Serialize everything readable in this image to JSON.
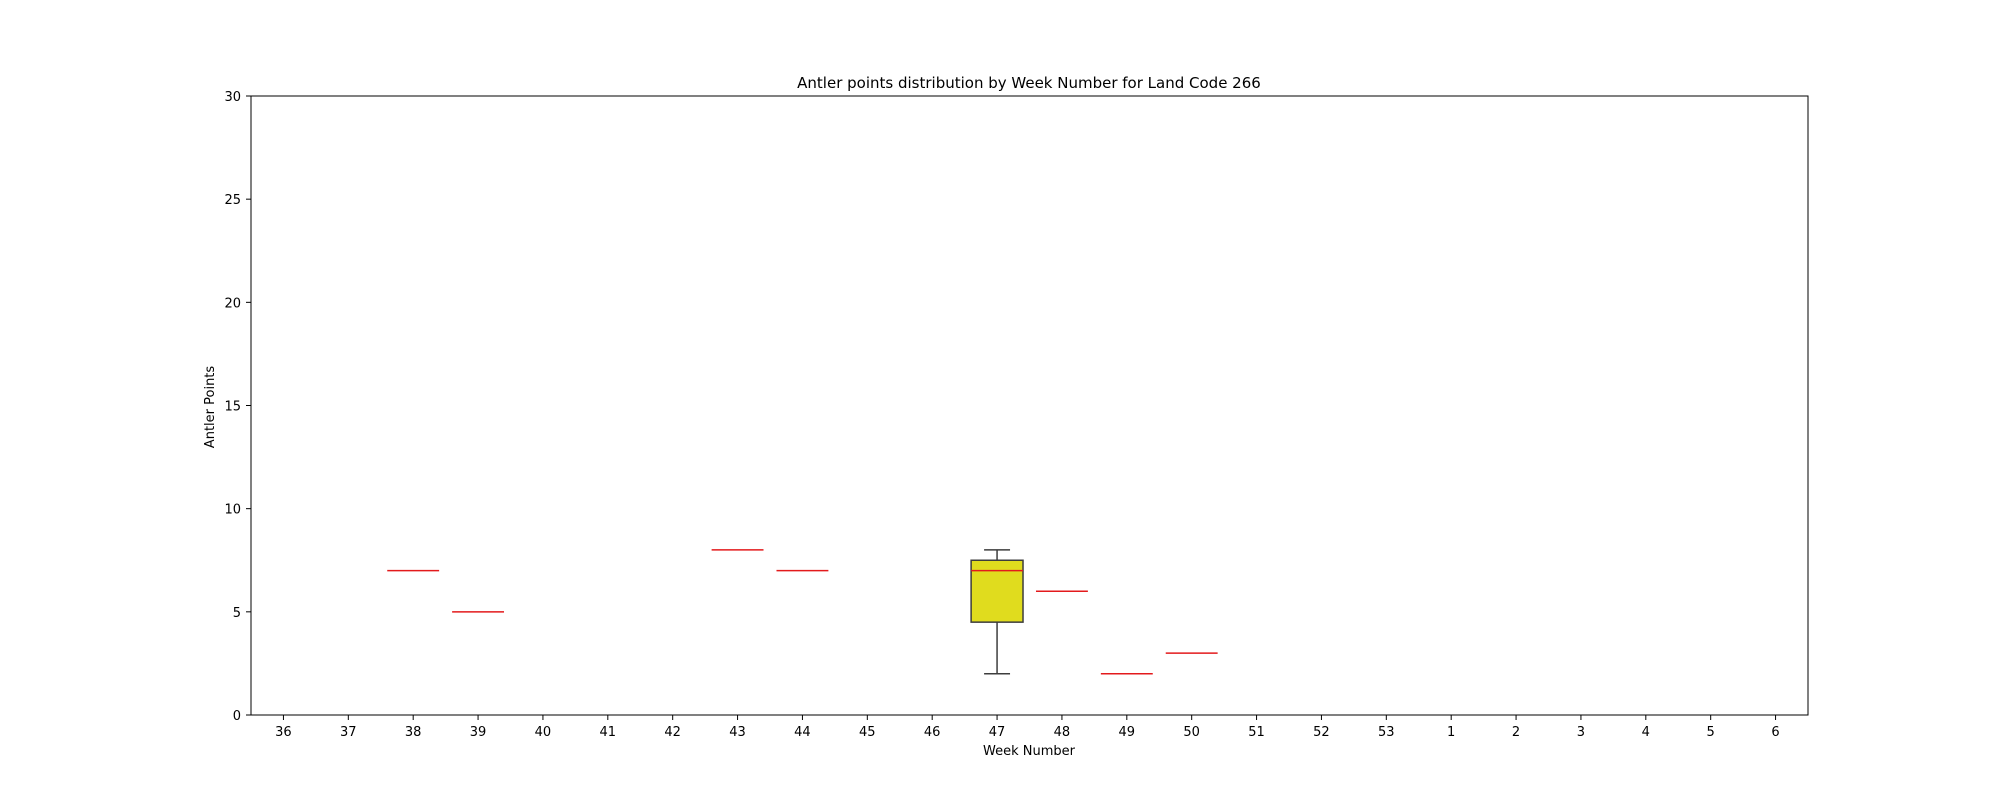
{
  "chart_data": {
    "type": "box",
    "title": "Antler points distribution by Week Number for Land Code 266",
    "xlabel": "Week Number",
    "ylabel": "Antler Points",
    "ylim": [
      0,
      30
    ],
    "yticks": [
      0,
      5,
      10,
      15,
      20,
      25,
      30
    ],
    "grid": false,
    "categories": [
      "36",
      "37",
      "38",
      "39",
      "40",
      "41",
      "42",
      "43",
      "44",
      "45",
      "46",
      "47",
      "48",
      "49",
      "50",
      "51",
      "52",
      "53",
      "1",
      "2",
      "3",
      "4",
      "5",
      "6"
    ],
    "boxes": [
      {
        "week": "38",
        "min": 7,
        "q1": 7,
        "median": 7,
        "q3": 7,
        "max": 7
      },
      {
        "week": "39",
        "min": 5,
        "q1": 5,
        "median": 5,
        "q3": 5,
        "max": 5
      },
      {
        "week": "43",
        "min": 8,
        "q1": 8,
        "median": 8,
        "q3": 8,
        "max": 8
      },
      {
        "week": "44",
        "min": 7,
        "q1": 7,
        "median": 7,
        "q3": 7,
        "max": 7
      },
      {
        "week": "47",
        "min": 2,
        "q1": 4.5,
        "median": 7,
        "q3": 7.5,
        "max": 8
      },
      {
        "week": "48",
        "min": 6,
        "q1": 6,
        "median": 6,
        "q3": 6,
        "max": 6
      },
      {
        "week": "49",
        "min": 2,
        "q1": 2,
        "median": 2,
        "q3": 2,
        "max": 2
      },
      {
        "week": "50",
        "min": 3,
        "q1": 3,
        "median": 3,
        "q3": 3,
        "max": 3
      }
    ],
    "colors": {
      "box_fill": "#e0dc1e",
      "box_edge": "#3d3d3d",
      "median": "#e31a1c",
      "whisker": "#3d3d3d",
      "axes": "#000000"
    }
  }
}
